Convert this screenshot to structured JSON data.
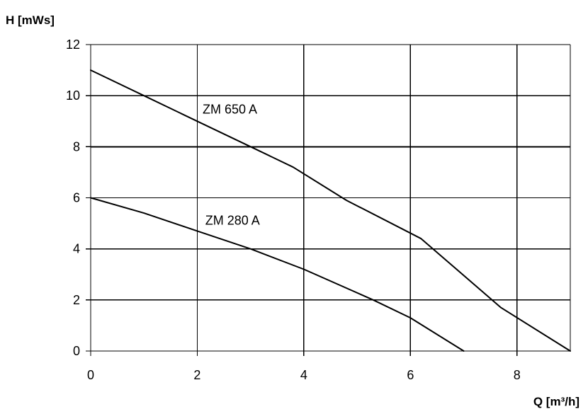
{
  "chart_data": {
    "type": "line",
    "xlabel": "Q [m³/h]",
    "ylabel": "H [mWs]",
    "xlim": [
      0,
      9
    ],
    "ylim": [
      0,
      12
    ],
    "x_ticks": [
      0,
      2,
      4,
      6,
      8
    ],
    "y_ticks": [
      0,
      2,
      4,
      6,
      8,
      10,
      12
    ],
    "grid": true,
    "legend": "none",
    "series": [
      {
        "name": "ZM 650 A",
        "x": [
          0,
          1,
          2,
          3,
          3.8,
          4.8,
          6.2,
          7.7,
          9
        ],
        "y": [
          11,
          10,
          9,
          8,
          7.2,
          5.9,
          4.4,
          1.7,
          0
        ],
        "label_at": [
          2.1,
          9.3
        ]
      },
      {
        "name": "ZM 280 A",
        "x": [
          0,
          1,
          2,
          3,
          4,
          5.3,
          6,
          7
        ],
        "y": [
          6,
          5.4,
          4.7,
          4,
          3.2,
          2,
          1.3,
          0
        ],
        "label_at": [
          2.15,
          4.95
        ]
      }
    ]
  }
}
